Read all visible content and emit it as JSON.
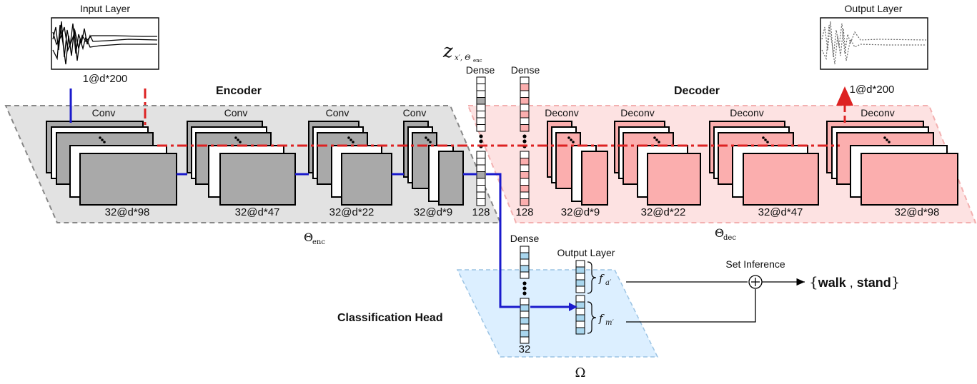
{
  "input_panel": {
    "title": "Input Layer",
    "shape": "1@d*200"
  },
  "output_panel": {
    "title": "Output Layer",
    "shape": "1@d*200"
  },
  "encoder": {
    "title": "Encoder",
    "theta_symbol": "Θ",
    "theta_sub": "enc",
    "blocks": [
      {
        "op": "Conv",
        "shape": "32@d*98"
      },
      {
        "op": "Conv",
        "shape": "32@d*47"
      },
      {
        "op": "Conv",
        "shape": "32@d*22"
      },
      {
        "op": "Conv",
        "shape": "32@d*9"
      }
    ]
  },
  "decoder": {
    "title": "Decoder",
    "theta_symbol": "Θ",
    "theta_sub": "dec",
    "blocks": [
      {
        "op": "Deconv",
        "shape": "32@d*9"
      },
      {
        "op": "Deconv",
        "shape": "32@d*22"
      },
      {
        "op": "Deconv",
        "shape": "32@d*47"
      },
      {
        "op": "Deconv",
        "shape": "32@d*98"
      }
    ]
  },
  "latent": {
    "z_symbol": "z",
    "z_sub": "x′, Θ",
    "z_subsub": "enc",
    "dense_enc": {
      "title": "Dense",
      "size": "128"
    },
    "dense_dec": {
      "title": "Dense",
      "size": "128"
    }
  },
  "classification": {
    "title": "Classification Head",
    "omega": "Ω",
    "dense": {
      "title": "Dense",
      "size": "32"
    },
    "output_title": "Output Layer",
    "f_a": "f",
    "f_a_sub": "a′",
    "f_m": "f",
    "f_m_sub": "m′"
  },
  "inference": {
    "title": "Set Inference",
    "open_brace": "{",
    "label_a": "walk",
    "sep": " , ",
    "label_b": "stand",
    "close_brace": "}"
  },
  "colors": {
    "encoder_region": "#e2e2e2",
    "decoder_region": "#fde2e2",
    "classification_region": "#dcefff",
    "encoder_block": "#a9a9a9",
    "decoder_block": "#fbaeae",
    "blue_path": "#1a1acc",
    "red_path": "#dd2222"
  }
}
